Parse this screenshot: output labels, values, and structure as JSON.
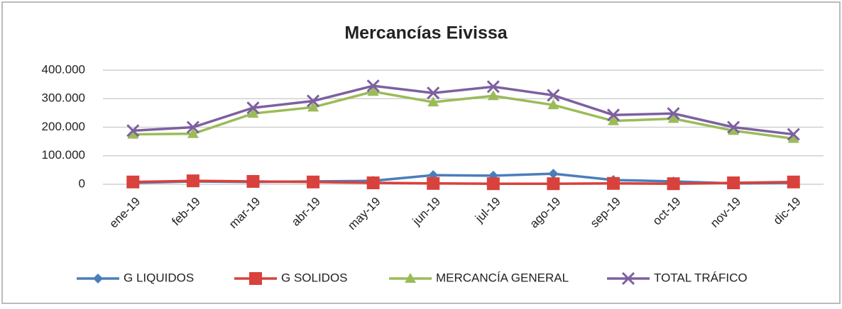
{
  "chart_data": {
    "type": "line",
    "title": "Mercancías Eivissa",
    "categories": [
      "ene-19",
      "feb-19",
      "mar-19",
      "abr-19",
      "may-19",
      "jun-19",
      "jul-19",
      "ago-19",
      "sep-19",
      "oct-19",
      "nov-19",
      "dic-19"
    ],
    "series": [
      {
        "name": "G LIQUIDOS",
        "color": "#4a7ebb",
        "marker": "diamond",
        "values": [
          5000,
          10000,
          8000,
          10000,
          12000,
          32000,
          30000,
          37000,
          15000,
          10000,
          3000,
          5000
        ]
      },
      {
        "name": "G SOLIDOS",
        "color": "#d9413c",
        "marker": "square",
        "values": [
          8000,
          12000,
          10000,
          8000,
          5000,
          3000,
          2000,
          2000,
          3000,
          2000,
          5000,
          8000
        ]
      },
      {
        "name": "MERCANCÍA GENERAL",
        "color": "#9bbb59",
        "marker": "triangle",
        "values": [
          175000,
          177000,
          248000,
          270000,
          325000,
          288000,
          310000,
          278000,
          222000,
          230000,
          188000,
          160000
        ]
      },
      {
        "name": "TOTAL TRÁFICO",
        "color": "#7d60a0",
        "marker": "x",
        "values": [
          188000,
          200000,
          268000,
          292000,
          345000,
          320000,
          342000,
          312000,
          243000,
          248000,
          200000,
          175000
        ]
      }
    ],
    "ylim": [
      0,
      400000
    ],
    "yticks": [
      0,
      {
        "value": 100000,
        "label": "100.000"
      },
      {
        "value": 200000,
        "label": "200.000"
      },
      {
        "value": 300000,
        "label": "300.000"
      },
      {
        "value": 400000,
        "label": "400.000"
      }
    ],
    "grid": true,
    "legend": "bottom"
  }
}
